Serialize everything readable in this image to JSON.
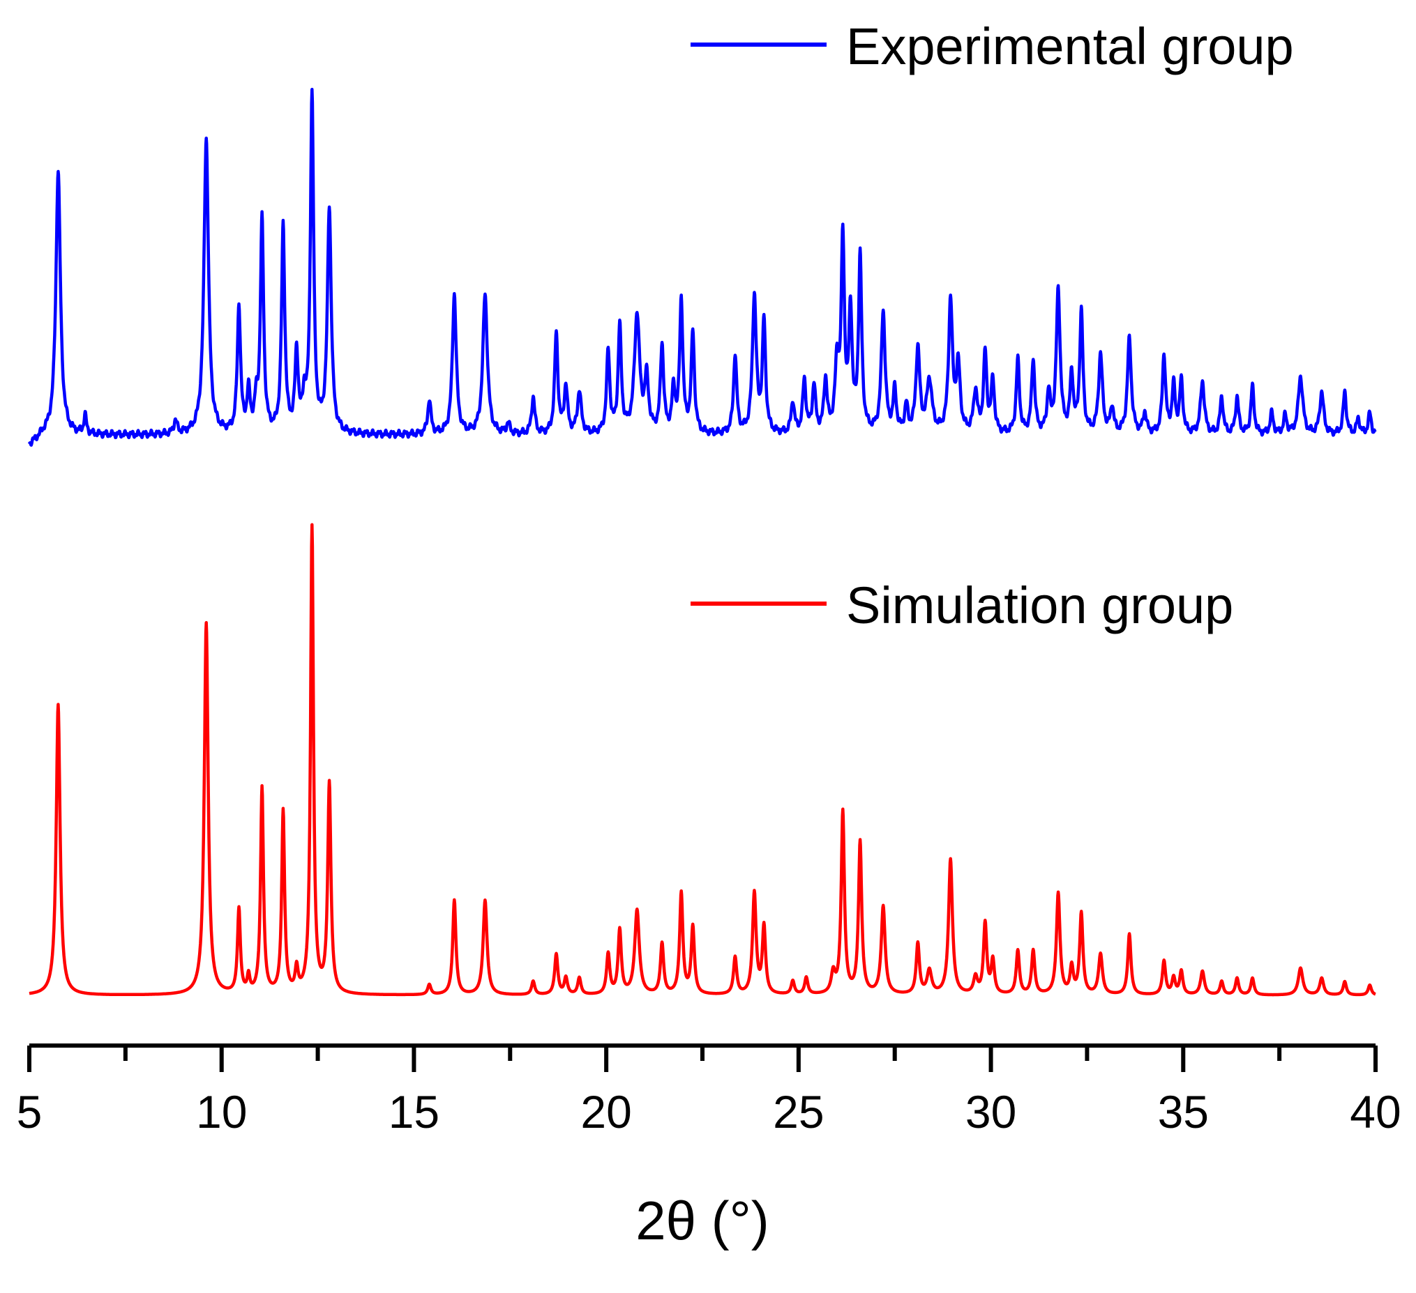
{
  "chart_data": {
    "type": "line",
    "title": "",
    "xlabel": "2θ (°)",
    "ylabel": "",
    "xlim": [
      5,
      40
    ],
    "xticks": [
      5,
      10,
      15,
      20,
      25,
      30,
      35,
      40
    ],
    "grid": false,
    "legend_placement": "top-right (per series)",
    "series": [
      {
        "name": "Experimental group",
        "color": "#0000ff",
        "baseline": 0.02,
        "x_range": [
          5,
          40
        ],
        "peaks": [
          [
            5.75,
            1.0,
            0.07
          ],
          [
            6.45,
            0.07,
            0.04
          ],
          [
            8.8,
            0.05,
            0.05
          ],
          [
            9.6,
            1.12,
            0.07
          ],
          [
            10.45,
            0.48,
            0.05
          ],
          [
            10.7,
            0.15,
            0.05
          ],
          [
            10.9,
            0.1,
            0.05
          ],
          [
            11.05,
            0.8,
            0.05
          ],
          [
            11.6,
            0.78,
            0.05
          ],
          [
            11.95,
            0.3,
            0.05
          ],
          [
            12.15,
            0.12,
            0.05
          ],
          [
            12.35,
            1.27,
            0.05
          ],
          [
            12.8,
            0.85,
            0.06
          ],
          [
            15.4,
            0.13,
            0.05
          ],
          [
            16.05,
            0.53,
            0.06
          ],
          [
            16.85,
            0.53,
            0.07
          ],
          [
            17.45,
            0.04,
            0.05
          ],
          [
            18.1,
            0.14,
            0.05
          ],
          [
            18.7,
            0.38,
            0.05
          ],
          [
            18.95,
            0.18,
            0.05
          ],
          [
            19.3,
            0.16,
            0.06
          ],
          [
            20.05,
            0.31,
            0.05
          ],
          [
            20.35,
            0.4,
            0.05
          ],
          [
            20.8,
            0.45,
            0.08
          ],
          [
            21.05,
            0.2,
            0.06
          ],
          [
            21.45,
            0.33,
            0.05
          ],
          [
            21.75,
            0.16,
            0.05
          ],
          [
            21.95,
            0.5,
            0.05
          ],
          [
            22.25,
            0.38,
            0.05
          ],
          [
            23.35,
            0.3,
            0.05
          ],
          [
            23.85,
            0.52,
            0.06
          ],
          [
            24.1,
            0.42,
            0.05
          ],
          [
            24.85,
            0.12,
            0.05
          ],
          [
            25.15,
            0.2,
            0.05
          ],
          [
            25.4,
            0.18,
            0.05
          ],
          [
            25.7,
            0.2,
            0.05
          ],
          [
            26.0,
            0.25,
            0.06
          ],
          [
            26.15,
            0.72,
            0.05
          ],
          [
            26.35,
            0.45,
            0.05
          ],
          [
            26.6,
            0.66,
            0.05
          ],
          [
            27.2,
            0.46,
            0.06
          ],
          [
            27.5,
            0.16,
            0.05
          ],
          [
            27.8,
            0.1,
            0.05
          ],
          [
            28.1,
            0.32,
            0.06
          ],
          [
            28.4,
            0.2,
            0.08
          ],
          [
            28.95,
            0.5,
            0.06
          ],
          [
            29.15,
            0.25,
            0.06
          ],
          [
            29.6,
            0.16,
            0.06
          ],
          [
            29.85,
            0.3,
            0.05
          ],
          [
            30.05,
            0.2,
            0.05
          ],
          [
            30.7,
            0.28,
            0.05
          ],
          [
            31.1,
            0.28,
            0.05
          ],
          [
            31.5,
            0.15,
            0.05
          ],
          [
            31.75,
            0.54,
            0.06
          ],
          [
            32.1,
            0.22,
            0.05
          ],
          [
            32.35,
            0.46,
            0.05
          ],
          [
            32.85,
            0.3,
            0.06
          ],
          [
            33.15,
            0.1,
            0.05
          ],
          [
            33.6,
            0.36,
            0.06
          ],
          [
            34.0,
            0.08,
            0.05
          ],
          [
            34.5,
            0.3,
            0.05
          ],
          [
            34.75,
            0.18,
            0.05
          ],
          [
            34.95,
            0.2,
            0.05
          ],
          [
            35.5,
            0.2,
            0.06
          ],
          [
            36.0,
            0.14,
            0.05
          ],
          [
            36.4,
            0.14,
            0.05
          ],
          [
            36.8,
            0.18,
            0.05
          ],
          [
            37.3,
            0.08,
            0.05
          ],
          [
            37.65,
            0.07,
            0.05
          ],
          [
            38.05,
            0.22,
            0.07
          ],
          [
            38.6,
            0.16,
            0.06
          ],
          [
            39.2,
            0.16,
            0.05
          ],
          [
            39.55,
            0.06,
            0.05
          ],
          [
            39.85,
            0.08,
            0.05
          ]
        ]
      },
      {
        "name": "Simulation group",
        "color": "#ff0000",
        "baseline": 0.0,
        "x_range": [
          5,
          40
        ],
        "peaks": [
          [
            5.75,
            0.86,
            0.06
          ],
          [
            9.6,
            1.1,
            0.06
          ],
          [
            10.45,
            0.25,
            0.045
          ],
          [
            10.7,
            0.05,
            0.04
          ],
          [
            11.05,
            0.61,
            0.045
          ],
          [
            11.6,
            0.54,
            0.045
          ],
          [
            11.95,
            0.07,
            0.045
          ],
          [
            12.35,
            1.38,
            0.045
          ],
          [
            12.8,
            0.62,
            0.05
          ],
          [
            15.4,
            0.03,
            0.05
          ],
          [
            16.05,
            0.28,
            0.05
          ],
          [
            16.85,
            0.28,
            0.06
          ],
          [
            18.1,
            0.04,
            0.05
          ],
          [
            18.7,
            0.12,
            0.05
          ],
          [
            18.95,
            0.05,
            0.05
          ],
          [
            19.3,
            0.05,
            0.05
          ],
          [
            20.05,
            0.12,
            0.05
          ],
          [
            20.35,
            0.19,
            0.05
          ],
          [
            20.8,
            0.25,
            0.07
          ],
          [
            21.45,
            0.15,
            0.05
          ],
          [
            21.95,
            0.3,
            0.05
          ],
          [
            22.25,
            0.2,
            0.05
          ],
          [
            23.35,
            0.11,
            0.05
          ],
          [
            23.85,
            0.3,
            0.055
          ],
          [
            24.1,
            0.2,
            0.05
          ],
          [
            24.85,
            0.04,
            0.05
          ],
          [
            25.2,
            0.05,
            0.05
          ],
          [
            25.9,
            0.06,
            0.06
          ],
          [
            26.15,
            0.54,
            0.05
          ],
          [
            26.6,
            0.45,
            0.05
          ],
          [
            27.2,
            0.26,
            0.06
          ],
          [
            28.1,
            0.15,
            0.05
          ],
          [
            28.4,
            0.07,
            0.07
          ],
          [
            28.95,
            0.4,
            0.06
          ],
          [
            29.6,
            0.05,
            0.06
          ],
          [
            29.85,
            0.21,
            0.05
          ],
          [
            30.05,
            0.1,
            0.05
          ],
          [
            30.7,
            0.13,
            0.05
          ],
          [
            31.1,
            0.13,
            0.05
          ],
          [
            31.75,
            0.3,
            0.055
          ],
          [
            32.1,
            0.08,
            0.05
          ],
          [
            32.35,
            0.24,
            0.05
          ],
          [
            32.85,
            0.12,
            0.06
          ],
          [
            33.6,
            0.18,
            0.05
          ],
          [
            34.5,
            0.1,
            0.05
          ],
          [
            34.75,
            0.05,
            0.05
          ],
          [
            34.95,
            0.07,
            0.05
          ],
          [
            35.5,
            0.07,
            0.06
          ],
          [
            36.0,
            0.04,
            0.05
          ],
          [
            36.4,
            0.05,
            0.05
          ],
          [
            36.8,
            0.05,
            0.05
          ],
          [
            38.05,
            0.08,
            0.07
          ],
          [
            38.6,
            0.05,
            0.06
          ],
          [
            39.2,
            0.04,
            0.05
          ],
          [
            39.85,
            0.03,
            0.05
          ]
        ]
      }
    ]
  }
}
